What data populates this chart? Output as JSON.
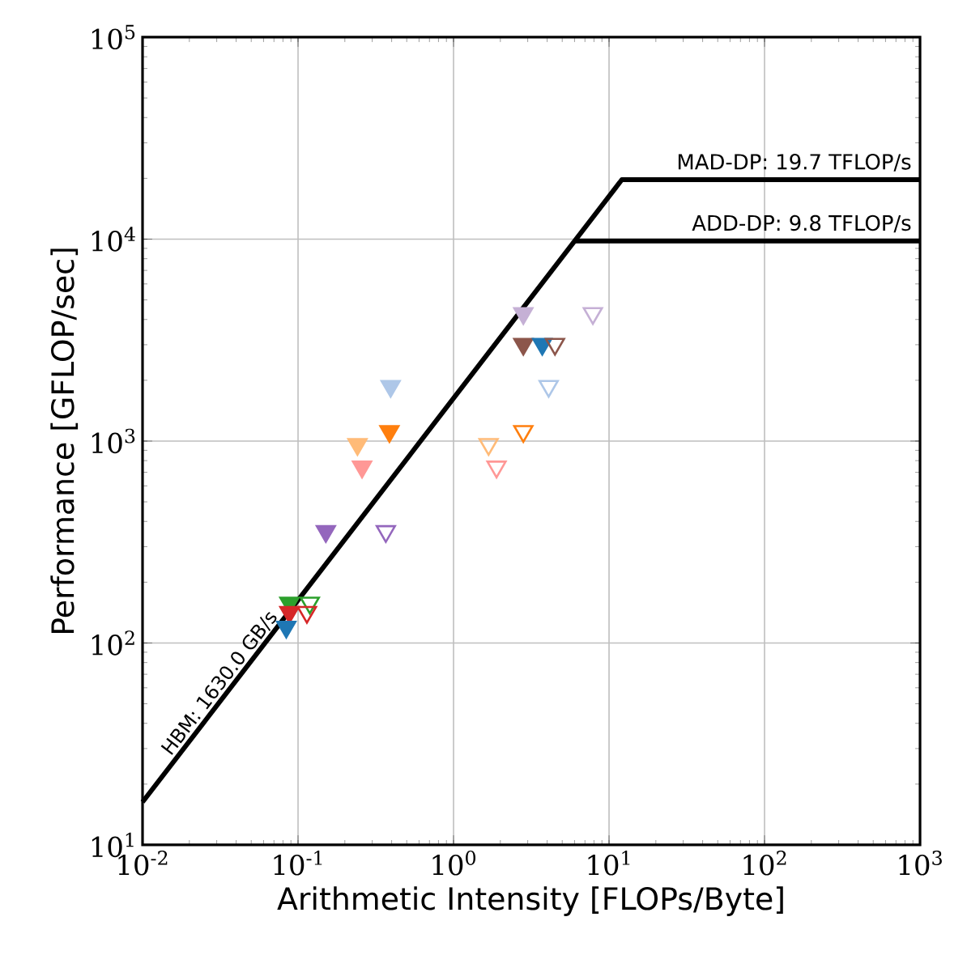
{
  "chart_data": {
    "type": "scatter",
    "xlabel": "Arithmetic Intensity [FLOPs/Byte]",
    "ylabel": "Performance [GFLOP/sec]",
    "log": "xy",
    "grid": true,
    "xlim": [
      0.01,
      1000
    ],
    "ylim": [
      10,
      100000
    ],
    "xticks": [
      {
        "value": 0.01,
        "label": "10$^{-2}$"
      },
      {
        "value": 0.1,
        "label": "10$^{-1}$"
      },
      {
        "value": 1,
        "label": "10$^{0}$"
      },
      {
        "value": 10,
        "label": "10$^{1}$"
      },
      {
        "value": 100,
        "label": "10$^{2}$"
      },
      {
        "value": 1000,
        "label": "10$^{3}$"
      }
    ],
    "yticks": [
      {
        "value": 10,
        "label": "10$^{1}$"
      },
      {
        "value": 100,
        "label": "10$^{2}$"
      },
      {
        "value": 1000,
        "label": "10$^{3}$"
      },
      {
        "value": 10000,
        "label": "10$^{4}$"
      },
      {
        "value": 100000,
        "label": "10$^{5}$"
      }
    ],
    "series": [
      {
        "type": "line",
        "color": "#000000",
        "x": [
          0.01,
          12.09,
          1000
        ],
        "values": [
          16.3,
          19700,
          19700
        ]
      },
      {
        "type": "line",
        "color": "#000000",
        "x": [
          6.01,
          1000
        ],
        "values": [
          9800,
          9800
        ]
      },
      {
        "marker": "triangle",
        "x": [
          2.81,
          2.81,
          3.72,
          0.394,
          0.387,
          0.241,
          0.258,
          0.151,
          0.088,
          0.088,
          0.084
        ],
        "values": [
          4290,
          3020,
          3020,
          1870,
          1117,
          964,
          745,
          357,
          158,
          142,
          120
        ],
        "colors": [
          "#c5b0d5",
          "#8c564b",
          "#1f77b4",
          "#aec7e8",
          "#ff7f0e",
          "#ffbb78",
          "#ff9896",
          "#9467bd",
          "#2ca02c",
          "#d62728",
          "#1f77b4"
        ]
      },
      {
        "marker": "triangle",
        "x": [
          7.87,
          4.49,
          4.09,
          2.81,
          1.68,
          1.89,
          0.367,
          0.119,
          0.114
        ],
        "values": [
          4290,
          3020,
          1870,
          1117,
          964,
          745,
          357,
          158,
          142
        ],
        "colors": [
          "#c5b0d5",
          "#8c564b",
          "#aec7e8",
          "#ff7f0e",
          "#ffbb78",
          "#ff9896",
          "#9467bd",
          "#2ca02c",
          "#d62728"
        ]
      }
    ],
    "annotations": [
      "MAD-DP: 19.7 TFLOP/s",
      "ADD-DP: 9.8 TFLOP/s",
      "HBM: 1630.0 GB/s"
    ]
  }
}
